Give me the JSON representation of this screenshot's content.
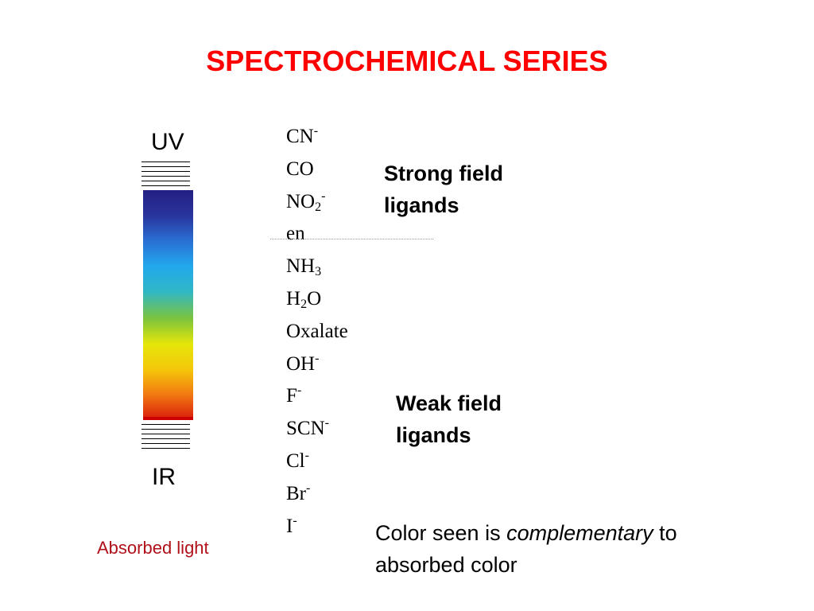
{
  "title": "SPECTROCHEMICAL SERIES",
  "spectrum": {
    "top_label": "UV",
    "bottom_label": "IR",
    "caption": "Absorbed light",
    "colors": [
      "#241f82",
      "#28349c",
      "#2a6fd4",
      "#22a8ec",
      "#30b7c6",
      "#7dc43c",
      "#e6e60a",
      "#f4c70a",
      "#f27812",
      "#d81a0c"
    ]
  },
  "ligands": [
    {
      "base": "CN",
      "sub": "",
      "sup": "-"
    },
    {
      "base": "CO",
      "sub": "",
      "sup": ""
    },
    {
      "base": "NO",
      "sub": "2",
      "sup": "-"
    },
    {
      "base": "en",
      "sub": "",
      "sup": ""
    },
    {
      "base": "NH",
      "sub": "3",
      "sup": ""
    },
    {
      "base": "H",
      "sub": "2",
      "tail": "O",
      "sup": ""
    },
    {
      "base": "Oxalate",
      "sub": "",
      "sup": ""
    },
    {
      "base": "OH",
      "sub": "",
      "sup": "-"
    },
    {
      "base": "F",
      "sub": "",
      "sup": "-"
    },
    {
      "base": "SCN",
      "sub": "",
      "sup": "-"
    },
    {
      "base": "Cl",
      "sub": "",
      "sup": "-"
    },
    {
      "base": "Br",
      "sub": "",
      "sup": "-"
    },
    {
      "base": "I",
      "sub": "",
      "sup": "-"
    }
  ],
  "strong_field": {
    "line1": "Strong field",
    "line2": "ligands"
  },
  "weak_field": {
    "line1": "Weak field",
    "line2": "ligands"
  },
  "note": {
    "pre": "Color seen is ",
    "emphasis": "complementary",
    "post": " to",
    "line2": "absorbed color"
  }
}
